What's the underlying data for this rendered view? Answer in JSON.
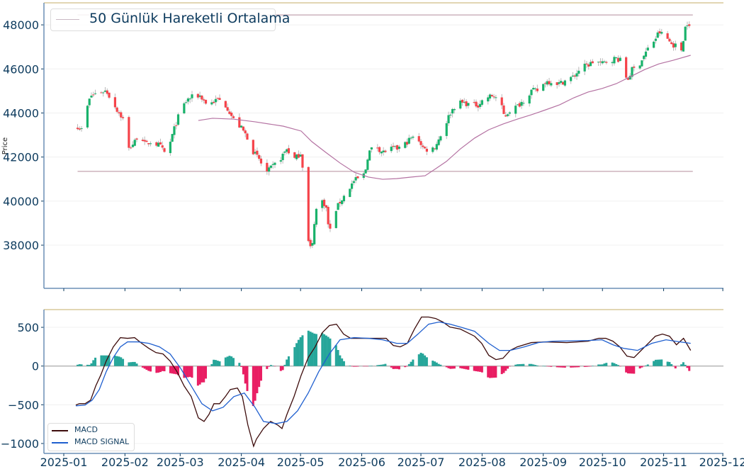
{
  "chart_data": [
    {
      "type": "candlestick",
      "title": "",
      "ylabel": "Price",
      "ylim": [
        36040,
        49000
      ],
      "yticks": [
        38000,
        40000,
        42000,
        44000,
        46000,
        48000
      ],
      "start_date": "2025-01-01",
      "x_unit": "days since start_date",
      "legend": {
        "position": "top-left",
        "entries": [
          "50 Günlük Hareketli Ortalama"
        ]
      },
      "colors": {
        "up": "#19b26b",
        "down": "#f5434a",
        "wick": "#b9b9b9",
        "ma": "#b472a2",
        "hline": "#cdb3bd"
      },
      "hlines": [
        48450,
        41350
      ],
      "close_keypoints": [
        [
          7,
          43400
        ],
        [
          9,
          43240
        ],
        [
          11.5,
          44140
        ],
        [
          13.6,
          44780
        ],
        [
          18,
          44950
        ],
        [
          21.5,
          45010
        ],
        [
          24,
          44620
        ],
        [
          27,
          44140
        ],
        [
          30.5,
          43660
        ],
        [
          33,
          42370
        ],
        [
          36,
          42700
        ],
        [
          38.4,
          43180
        ],
        [
          41.3,
          42530
        ],
        [
          43.8,
          42700
        ],
        [
          48.5,
          42530
        ],
        [
          52,
          42050
        ],
        [
          55.6,
          43180
        ],
        [
          59.2,
          44140
        ],
        [
          62.8,
          44620
        ],
        [
          66.4,
          44780
        ],
        [
          69.3,
          44780
        ],
        [
          71.8,
          44460
        ],
        [
          74.7,
          44460
        ],
        [
          78.3,
          44620
        ],
        [
          82.6,
          44300
        ],
        [
          86.2,
          43660
        ],
        [
          89.8,
          43340
        ],
        [
          93.3,
          42860
        ],
        [
          96.2,
          42210
        ],
        [
          99.1,
          41890
        ],
        [
          102.3,
          41250
        ],
        [
          105.9,
          41570
        ],
        [
          109.5,
          41890
        ],
        [
          113,
          42370
        ],
        [
          116.7,
          41890
        ],
        [
          120.3,
          42210
        ],
        [
          122,
          40770
        ],
        [
          123.9,
          38190
        ],
        [
          125.7,
          37710
        ],
        [
          127.4,
          39480
        ],
        [
          130,
          40120
        ],
        [
          132.8,
          39800
        ],
        [
          134.6,
          38520
        ],
        [
          137.1,
          39480
        ],
        [
          140,
          39960
        ],
        [
          143.6,
          40440
        ],
        [
          147.2,
          40930
        ],
        [
          150.8,
          41090
        ],
        [
          152.6,
          41250
        ],
        [
          154.4,
          42210
        ],
        [
          158,
          42530
        ],
        [
          161.6,
          42210
        ],
        [
          165.1,
          42370
        ],
        [
          168.7,
          42370
        ],
        [
          172.3,
          42530
        ],
        [
          175.9,
          42860
        ],
        [
          179.5,
          42860
        ],
        [
          182.4,
          42370
        ],
        [
          186,
          42310
        ],
        [
          188.5,
          42530
        ],
        [
          192,
          43180
        ],
        [
          195.7,
          43980
        ],
        [
          199.2,
          44460
        ],
        [
          202.8,
          44460
        ],
        [
          206.4,
          44370
        ],
        [
          210,
          44370
        ],
        [
          213.6,
          44690
        ],
        [
          217.2,
          44780
        ],
        [
          220.8,
          44620
        ],
        [
          223.3,
          43820
        ],
        [
          226.2,
          44140
        ],
        [
          229.8,
          44300
        ],
        [
          233.4,
          44620
        ],
        [
          237,
          45010
        ],
        [
          240.5,
          45010
        ],
        [
          244.1,
          45430
        ],
        [
          247.7,
          45430
        ],
        [
          251.3,
          45330
        ],
        [
          254.9,
          45520
        ],
        [
          258.5,
          45650
        ],
        [
          262.1,
          46070
        ],
        [
          265.7,
          46170
        ],
        [
          269.3,
          46390
        ],
        [
          272.8,
          46230
        ],
        [
          276.4,
          46390
        ],
        [
          280,
          46490
        ],
        [
          283.6,
          46300
        ],
        [
          285.4,
          45430
        ],
        [
          288,
          45970
        ],
        [
          290.8,
          46070
        ],
        [
          293.7,
          46550
        ],
        [
          296.2,
          46940
        ],
        [
          299.8,
          47360
        ],
        [
          301.6,
          47680
        ],
        [
          305.2,
          47450
        ],
        [
          308,
          47130
        ],
        [
          310.5,
          47040
        ],
        [
          313,
          46870
        ],
        [
          315.2,
          48000
        ],
        [
          316.6,
          48160
        ],
        [
          317.7,
          47360
        ],
        [
          318.8,
          46620
        ]
      ],
      "ma50_keypoints": [
        [
          68.2,
          43660
        ],
        [
          75.4,
          43760
        ],
        [
          86.2,
          43720
        ],
        [
          96.9,
          43600
        ],
        [
          111.3,
          43400
        ],
        [
          120.3,
          43180
        ],
        [
          125.7,
          42700
        ],
        [
          132.8,
          42210
        ],
        [
          140,
          41730
        ],
        [
          147.2,
          41310
        ],
        [
          154.4,
          41090
        ],
        [
          161.6,
          40990
        ],
        [
          168.7,
          41020
        ],
        [
          175.9,
          41090
        ],
        [
          183.1,
          41150
        ],
        [
          188.5,
          41470
        ],
        [
          193.9,
          41800
        ],
        [
          201,
          42370
        ],
        [
          208.2,
          42860
        ],
        [
          215.4,
          43240
        ],
        [
          222.6,
          43500
        ],
        [
          229.8,
          43720
        ],
        [
          237,
          43920
        ],
        [
          244.1,
          44140
        ],
        [
          251.3,
          44370
        ],
        [
          258.5,
          44690
        ],
        [
          265.7,
          44950
        ],
        [
          272.8,
          45110
        ],
        [
          280,
          45330
        ],
        [
          287.2,
          45650
        ],
        [
          294.4,
          45970
        ],
        [
          301.6,
          46230
        ],
        [
          308.7,
          46390
        ],
        [
          317.7,
          46620
        ]
      ]
    },
    {
      "type": "line",
      "title": "",
      "ylim": [
        -1128,
        729
      ],
      "yticks": [
        500,
        0,
        -500,
        -1000
      ],
      "xticks": [
        "2025-01",
        "2025-02",
        "2025-03",
        "2025-04",
        "2025-05",
        "2025-06",
        "2025-07",
        "2025-08",
        "2025-09",
        "2025-10",
        "2025-11",
        "2025-12"
      ],
      "x_unit": "days since 2025-01-01",
      "legend": {
        "position": "bottom-left"
      },
      "histogram": {
        "definition": "MACD - MACD SIGNAL",
        "colors": {
          "positive": "#26a69a",
          "negative": "#e91e63"
        }
      },
      "series": [
        {
          "name": "MACD",
          "color": "#3d0c0c",
          "points": [
            [
              6.1,
              -504
            ],
            [
              7.9,
              -486
            ],
            [
              10.8,
              -486
            ],
            [
              13.6,
              -440
            ],
            [
              16.2,
              -257
            ],
            [
              18.7,
              -119
            ],
            [
              21.5,
              64
            ],
            [
              25.1,
              248
            ],
            [
              28.7,
              367
            ],
            [
              32.3,
              358
            ],
            [
              35.9,
              367
            ],
            [
              39.5,
              293
            ],
            [
              43.1,
              229
            ],
            [
              46.7,
              174
            ],
            [
              50.3,
              156
            ],
            [
              53.9,
              64
            ],
            [
              57.4,
              -73
            ],
            [
              61,
              -257
            ],
            [
              64.6,
              -394
            ],
            [
              68.2,
              -669
            ],
            [
              71.1,
              -715
            ],
            [
              73.6,
              -624
            ],
            [
              76.1,
              -486
            ],
            [
              79,
              -486
            ],
            [
              81.9,
              -394
            ],
            [
              84.4,
              -303
            ],
            [
              88,
              -284
            ],
            [
              90.5,
              -394
            ],
            [
              93.3,
              -761
            ],
            [
              96.2,
              -1036
            ],
            [
              97.6,
              -945
            ],
            [
              101.2,
              -807
            ],
            [
              104.8,
              -715
            ],
            [
              108.4,
              -761
            ],
            [
              110.6,
              -807
            ],
            [
              113.1,
              -624
            ],
            [
              116.7,
              -394
            ],
            [
              120.3,
              -119
            ],
            [
              123.9,
              110
            ],
            [
              127.4,
              248
            ],
            [
              131,
              431
            ],
            [
              134.6,
              523
            ],
            [
              138.2,
              541
            ],
            [
              141.8,
              413
            ],
            [
              145.4,
              358
            ],
            [
              152.6,
              358
            ],
            [
              163.4,
              358
            ],
            [
              167,
              266
            ],
            [
              170.5,
              248
            ],
            [
              174.1,
              293
            ],
            [
              177.7,
              477
            ],
            [
              181.3,
              633
            ],
            [
              184.9,
              633
            ],
            [
              188.5,
              614
            ],
            [
              192.1,
              569
            ],
            [
              195.7,
              504
            ],
            [
              201,
              477
            ],
            [
              204.6,
              431
            ],
            [
              208.2,
              385
            ],
            [
              211.8,
              293
            ],
            [
              215.4,
              138
            ],
            [
              219,
              83
            ],
            [
              222.6,
              101
            ],
            [
              226.2,
              202
            ],
            [
              229.8,
              248
            ],
            [
              237,
              303
            ],
            [
              244.1,
              312
            ],
            [
              254.9,
              303
            ],
            [
              265.7,
              321
            ],
            [
              271.1,
              358
            ],
            [
              274.7,
              358
            ],
            [
              278.3,
              321
            ],
            [
              281.8,
              248
            ],
            [
              285.4,
              128
            ],
            [
              289,
              110
            ],
            [
              292.6,
              202
            ],
            [
              296.2,
              293
            ],
            [
              299.8,
              385
            ],
            [
              303.4,
              413
            ],
            [
              307,
              385
            ],
            [
              310.5,
              275
            ],
            [
              314.1,
              358
            ],
            [
              317.7,
              202
            ]
          ]
        },
        {
          "name": "MACD SIGNAL",
          "color": "#1f5fcf",
          "points": [
            [
              6.1,
              -514
            ],
            [
              10.8,
              -504
            ],
            [
              14.4,
              -440
            ],
            [
              18,
              -303
            ],
            [
              21.5,
              -73
            ],
            [
              25.1,
              110
            ],
            [
              28.7,
              248
            ],
            [
              32.3,
              312
            ],
            [
              37.7,
              312
            ],
            [
              43.1,
              293
            ],
            [
              48.5,
              248
            ],
            [
              53.9,
              156
            ],
            [
              59.2,
              -28
            ],
            [
              64.6,
              -257
            ],
            [
              70,
              -486
            ],
            [
              75.4,
              -578
            ],
            [
              80.8,
              -532
            ],
            [
              86.2,
              -394
            ],
            [
              91.5,
              -348
            ],
            [
              96.9,
              -532
            ],
            [
              101.2,
              -715
            ],
            [
              107.7,
              -743
            ],
            [
              113.1,
              -715
            ],
            [
              118.5,
              -578
            ],
            [
              123.9,
              -348
            ],
            [
              129.2,
              -73
            ],
            [
              134.6,
              156
            ],
            [
              140,
              339
            ],
            [
              147.2,
              367
            ],
            [
              154.4,
              358
            ],
            [
              161.6,
              339
            ],
            [
              168.7,
              293
            ],
            [
              174.1,
              293
            ],
            [
              179.5,
              413
            ],
            [
              184.9,
              541
            ],
            [
              190.3,
              569
            ],
            [
              195.7,
              541
            ],
            [
              201,
              504
            ],
            [
              208.2,
              449
            ],
            [
              215.4,
              293
            ],
            [
              220.8,
              202
            ],
            [
              226.2,
              202
            ],
            [
              233.4,
              248
            ],
            [
              240.5,
              303
            ],
            [
              247.7,
              321
            ],
            [
              265.7,
              330
            ],
            [
              272.8,
              339
            ],
            [
              278.3,
              275
            ],
            [
              283.6,
              229
            ],
            [
              290.8,
              202
            ],
            [
              298,
              293
            ],
            [
              305.2,
              339
            ],
            [
              312.4,
              312
            ],
            [
              317.7,
              293
            ]
          ]
        }
      ]
    }
  ]
}
